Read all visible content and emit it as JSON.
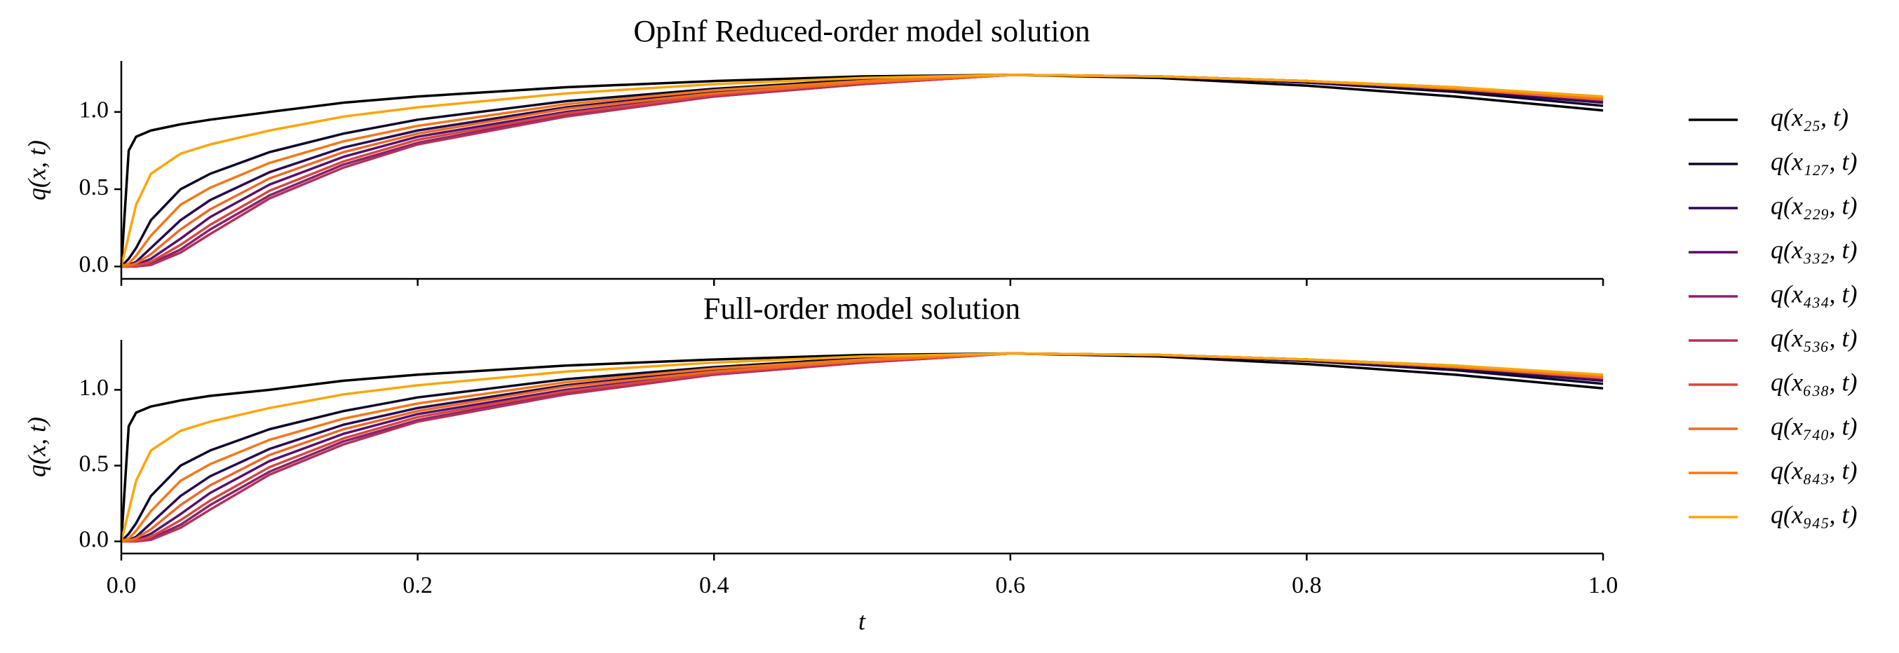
{
  "chart_data": [
    {
      "type": "line",
      "title": "OpInf Reduced-order model solution",
      "y_label": "q(x, t)",
      "x": [
        0,
        0.005,
        0.01,
        0.02,
        0.04,
        0.06,
        0.1,
        0.15,
        0.2,
        0.3,
        0.4,
        0.5,
        0.6,
        0.7,
        0.8,
        0.9,
        1.0
      ],
      "xlim": [
        0,
        1
      ],
      "xticks": [
        0,
        0.2,
        0.4,
        0.6,
        0.8,
        1.0
      ],
      "ylim": [
        -0.08,
        1.33
      ],
      "yticks": [
        {
          "value": 0,
          "label": "0.0"
        },
        {
          "value": 0.5,
          "label": "0.5"
        },
        {
          "value": 1,
          "label": "1.0"
        }
      ],
      "series": [
        {
          "name": "q(x₂₅, t)",
          "color": "#000004",
          "values": [
            0,
            0.75,
            0.84,
            0.88,
            0.92,
            0.95,
            1.0,
            1.06,
            1.1,
            1.16,
            1.2,
            1.23,
            1.24,
            1.22,
            1.17,
            1.1,
            1.01
          ]
        },
        {
          "name": "q(x₁₂₇, t)",
          "color": "#0d0829",
          "values": [
            0,
            0.05,
            0.12,
            0.3,
            0.5,
            0.6,
            0.74,
            0.86,
            0.95,
            1.07,
            1.15,
            1.21,
            1.24,
            1.23,
            1.19,
            1.13,
            1.04
          ]
        },
        {
          "name": "q(x₂₂₉, t)",
          "color": "#280b54",
          "values": [
            0,
            0.01,
            0.03,
            0.12,
            0.3,
            0.43,
            0.61,
            0.77,
            0.88,
            1.03,
            1.13,
            1.2,
            1.24,
            1.23,
            1.19,
            1.14,
            1.06
          ]
        },
        {
          "name": "q(x₃₃₂, t)",
          "color": "#57106e",
          "values": [
            0,
            0,
            0.01,
            0.05,
            0.18,
            0.32,
            0.53,
            0.71,
            0.84,
            1.0,
            1.11,
            1.19,
            1.24,
            1.23,
            1.2,
            1.15,
            1.07
          ]
        },
        {
          "name": "q(x₄₃₄, t)",
          "color": "#89226a",
          "values": [
            0,
            0,
            0,
            0.02,
            0.11,
            0.24,
            0.46,
            0.66,
            0.8,
            0.98,
            1.1,
            1.18,
            1.24,
            1.23,
            1.2,
            1.15,
            1.08
          ]
        },
        {
          "name": "q(x₅₃₆, t)",
          "color": "#b1325a",
          "values": [
            0,
            0,
            0,
            0.01,
            0.09,
            0.21,
            0.44,
            0.64,
            0.79,
            0.97,
            1.1,
            1.18,
            1.24,
            1.23,
            1.2,
            1.16,
            1.09
          ]
        },
        {
          "name": "q(x₆₃₈, t)",
          "color": "#d44842",
          "values": [
            0,
            0,
            0.005,
            0.03,
            0.14,
            0.27,
            0.49,
            0.68,
            0.82,
            0.99,
            1.11,
            1.19,
            1.24,
            1.23,
            1.2,
            1.15,
            1.08
          ]
        },
        {
          "name": "q(x₇₄₀, t)",
          "color": "#ed6925",
          "values": [
            0,
            0.005,
            0.02,
            0.08,
            0.24,
            0.37,
            0.57,
            0.74,
            0.86,
            1.02,
            1.12,
            1.19,
            1.24,
            1.23,
            1.2,
            1.15,
            1.08
          ]
        },
        {
          "name": "q(x₈₄₃, t)",
          "color": "#f37819",
          "values": [
            0,
            0.02,
            0.07,
            0.2,
            0.4,
            0.51,
            0.67,
            0.81,
            0.91,
            1.05,
            1.14,
            1.2,
            1.24,
            1.23,
            1.2,
            1.15,
            1.09
          ]
        },
        {
          "name": "q(x₉₄₅, t)",
          "color": "#fca50a",
          "values": [
            0,
            0.2,
            0.4,
            0.6,
            0.73,
            0.79,
            0.88,
            0.97,
            1.03,
            1.12,
            1.18,
            1.22,
            1.24,
            1.23,
            1.2,
            1.16,
            1.1
          ]
        }
      ]
    },
    {
      "type": "line",
      "title": "Full-order model solution",
      "y_label": "q(x, t)",
      "x_label": "t",
      "x": [
        0,
        0.005,
        0.01,
        0.02,
        0.04,
        0.06,
        0.1,
        0.15,
        0.2,
        0.3,
        0.4,
        0.5,
        0.6,
        0.7,
        0.8,
        0.9,
        1.0
      ],
      "xlim": [
        0,
        1
      ],
      "xticks": [
        {
          "value": 0,
          "label": "0.0"
        },
        {
          "value": 0.2,
          "label": "0.2"
        },
        {
          "value": 0.4,
          "label": "0.4"
        },
        {
          "value": 0.6,
          "label": "0.6"
        },
        {
          "value": 0.8,
          "label": "0.8"
        },
        {
          "value": 1,
          "label": "1.0"
        }
      ],
      "ylim": [
        -0.08,
        1.33
      ],
      "yticks": [
        {
          "value": 0,
          "label": "0.0"
        },
        {
          "value": 0.5,
          "label": "0.5"
        },
        {
          "value": 1,
          "label": "1.0"
        }
      ],
      "series": [
        {
          "color": "#000004",
          "values": [
            0,
            0.76,
            0.85,
            0.89,
            0.93,
            0.96,
            1.0,
            1.06,
            1.1,
            1.16,
            1.2,
            1.23,
            1.24,
            1.22,
            1.17,
            1.1,
            1.01
          ]
        },
        {
          "color": "#0d0829",
          "values": [
            0,
            0.05,
            0.12,
            0.3,
            0.5,
            0.6,
            0.74,
            0.86,
            0.95,
            1.07,
            1.15,
            1.21,
            1.24,
            1.23,
            1.19,
            1.13,
            1.04
          ]
        },
        {
          "color": "#280b54",
          "values": [
            0,
            0.01,
            0.03,
            0.12,
            0.3,
            0.43,
            0.61,
            0.77,
            0.88,
            1.03,
            1.13,
            1.2,
            1.24,
            1.23,
            1.19,
            1.14,
            1.06
          ]
        },
        {
          "color": "#57106e",
          "values": [
            0,
            0,
            0.01,
            0.05,
            0.18,
            0.32,
            0.53,
            0.71,
            0.84,
            1.0,
            1.11,
            1.19,
            1.24,
            1.23,
            1.2,
            1.15,
            1.07
          ]
        },
        {
          "color": "#89226a",
          "values": [
            0,
            0,
            0,
            0.02,
            0.11,
            0.24,
            0.46,
            0.66,
            0.8,
            0.98,
            1.1,
            1.18,
            1.24,
            1.23,
            1.2,
            1.15,
            1.08
          ]
        },
        {
          "color": "#b1325a",
          "values": [
            0,
            0,
            0,
            0.01,
            0.09,
            0.21,
            0.44,
            0.64,
            0.79,
            0.97,
            1.1,
            1.18,
            1.24,
            1.23,
            1.2,
            1.16,
            1.09
          ]
        },
        {
          "color": "#d44842",
          "values": [
            0,
            0,
            0.005,
            0.03,
            0.14,
            0.27,
            0.49,
            0.68,
            0.82,
            0.99,
            1.11,
            1.19,
            1.24,
            1.23,
            1.2,
            1.15,
            1.08
          ]
        },
        {
          "color": "#ed6925",
          "values": [
            0,
            0.005,
            0.02,
            0.08,
            0.24,
            0.37,
            0.57,
            0.74,
            0.86,
            1.02,
            1.12,
            1.19,
            1.24,
            1.23,
            1.2,
            1.15,
            1.08
          ]
        },
        {
          "color": "#f37819",
          "values": [
            0,
            0.02,
            0.07,
            0.2,
            0.4,
            0.51,
            0.67,
            0.81,
            0.91,
            1.05,
            1.14,
            1.2,
            1.24,
            1.23,
            1.2,
            1.15,
            1.09
          ]
        },
        {
          "color": "#fca50a",
          "values": [
            0,
            0.2,
            0.4,
            0.6,
            0.73,
            0.79,
            0.88,
            0.97,
            1.03,
            1.12,
            1.18,
            1.22,
            1.24,
            1.23,
            1.2,
            1.16,
            1.1
          ]
        }
      ]
    }
  ]
}
